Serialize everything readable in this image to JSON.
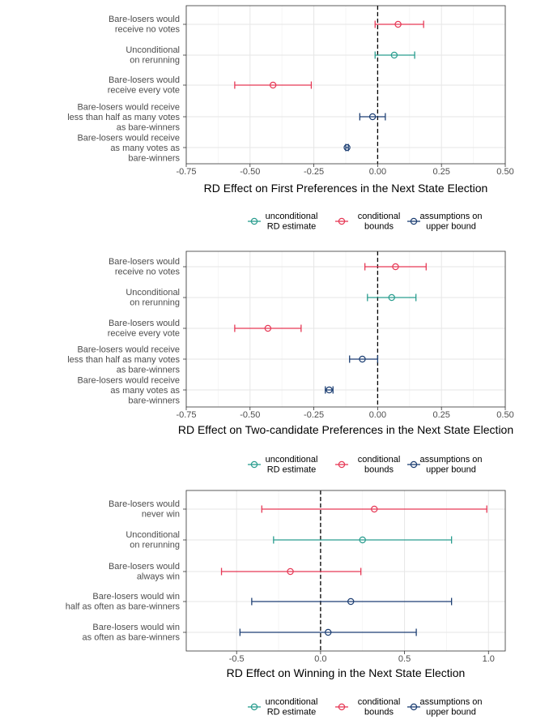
{
  "colors": {
    "unconditional": "#2a9d8f",
    "conditional": "#e63956",
    "assumptions": "#1d3f73"
  },
  "legend": [
    {
      "key": "unconditional",
      "lines": [
        "unconditional",
        "RD estimate"
      ]
    },
    {
      "key": "conditional",
      "lines": [
        "conditional",
        "bounds"
      ]
    },
    {
      "key": "assumptions",
      "lines": [
        "assumptions on",
        "upper bound"
      ]
    }
  ],
  "chart_data": [
    {
      "type": "errorbar",
      "xlabel": "RD Effect on First Preferences in the Next State Election",
      "xlim": [
        -0.75,
        0.5
      ],
      "xticks": [
        -0.75,
        -0.5,
        -0.25,
        0.0,
        0.25,
        0.5
      ],
      "xtick_labels": [
        "-0.75",
        "-0.50",
        "-0.25",
        "0.00",
        "0.25",
        "0.50"
      ],
      "rows": [
        {
          "label": [
            "Bare-losers would",
            "receive no votes"
          ],
          "group": "conditional",
          "estimate": 0.08,
          "lower": -0.01,
          "upper": 0.18
        },
        {
          "label": [
            "Unconditional",
            "on rerunning"
          ],
          "group": "unconditional",
          "estimate": 0.065,
          "lower": -0.01,
          "upper": 0.145
        },
        {
          "label": [
            "Bare-losers would",
            "receive every vote"
          ],
          "group": "conditional",
          "estimate": -0.41,
          "lower": -0.56,
          "upper": -0.26
        },
        {
          "label": [
            "Bare-losers would receive",
            "less than half as many votes",
            "as bare-winners"
          ],
          "group": "assumptions",
          "estimate": -0.02,
          "lower": -0.07,
          "upper": 0.03
        },
        {
          "label": [
            "Bare-losers would receive",
            "as many votes as",
            "bare-winners"
          ],
          "group": "assumptions",
          "estimate": -0.12,
          "lower": -0.125,
          "upper": -0.115
        }
      ]
    },
    {
      "type": "errorbar",
      "xlabel": "RD Effect on Two-candidate Preferences in the Next State Election",
      "xlim": [
        -0.75,
        0.5
      ],
      "xticks": [
        -0.75,
        -0.5,
        -0.25,
        0.0,
        0.25,
        0.5
      ],
      "xtick_labels": [
        "-0.75",
        "-0.50",
        "-0.25",
        "0.00",
        "0.25",
        "0.50"
      ],
      "rows": [
        {
          "label": [
            "Bare-losers would",
            "receive no votes"
          ],
          "group": "conditional",
          "estimate": 0.07,
          "lower": -0.05,
          "upper": 0.19
        },
        {
          "label": [
            "Unconditional",
            "on rerunning"
          ],
          "group": "unconditional",
          "estimate": 0.055,
          "lower": -0.04,
          "upper": 0.15
        },
        {
          "label": [
            "Bare-losers would",
            "receive every vote"
          ],
          "group": "conditional",
          "estimate": -0.43,
          "lower": -0.56,
          "upper": -0.3
        },
        {
          "label": [
            "Bare-losers would receive",
            "less than half as many votes",
            "as bare-winners"
          ],
          "group": "assumptions",
          "estimate": -0.06,
          "lower": -0.11,
          "upper": 0.0
        },
        {
          "label": [
            "Bare-losers would receive",
            "as many votes as",
            "bare-winners"
          ],
          "group": "assumptions",
          "estimate": -0.19,
          "lower": -0.205,
          "upper": -0.175
        }
      ]
    },
    {
      "type": "errorbar",
      "xlabel": "RD Effect on Winning in the Next State Election",
      "xlim": [
        -0.8,
        1.1
      ],
      "xticks": [
        -0.5,
        0.0,
        0.5,
        1.0
      ],
      "xtick_labels": [
        "-0.5",
        "0.0",
        "0.5",
        "1.0"
      ],
      "rows": [
        {
          "label": [
            "Bare-losers would",
            "never win"
          ],
          "group": "conditional",
          "estimate": 0.32,
          "lower": -0.35,
          "upper": 0.99
        },
        {
          "label": [
            "Unconditional",
            "on rerunning"
          ],
          "group": "unconditional",
          "estimate": 0.25,
          "lower": -0.28,
          "upper": 0.78
        },
        {
          "label": [
            "Bare-losers would",
            "always win"
          ],
          "group": "conditional",
          "estimate": -0.18,
          "lower": -0.59,
          "upper": 0.24
        },
        {
          "label": [
            "Bare-losers would win",
            "half as often as bare-winners"
          ],
          "group": "assumptions",
          "estimate": 0.18,
          "lower": -0.41,
          "upper": 0.78
        },
        {
          "label": [
            "Bare-losers would win",
            "as often as bare-winners"
          ],
          "group": "assumptions",
          "estimate": 0.045,
          "lower": -0.48,
          "upper": 0.57
        }
      ]
    }
  ]
}
